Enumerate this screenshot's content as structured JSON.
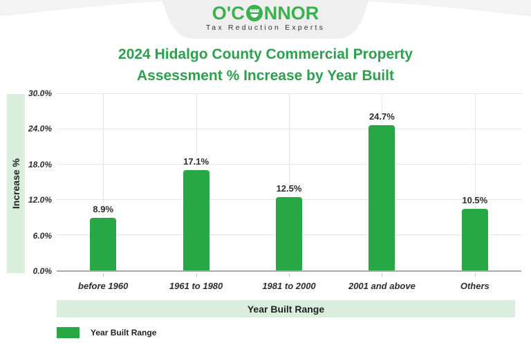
{
  "header": {
    "logo_pre": "O'C",
    "logo_post": "NNOR",
    "logo_full": "O'CONNOR",
    "logo_icon": "oconnor-ruler-circle-icon",
    "tagline": "Tax Reduction Experts"
  },
  "title": {
    "line1": "2024 Hidalgo County Commercial Property",
    "line2": "Assessment % Increase by Year Built"
  },
  "chart_data": {
    "type": "bar",
    "title": "2024 Hidalgo County Commercial Property Assessment % Increase by Year Built",
    "categories": [
      "before 1960",
      "1961 to 1980",
      "1981 to 2000",
      "2001 and above",
      "Others"
    ],
    "values": [
      8.9,
      17.1,
      12.5,
      24.7,
      10.5
    ],
    "value_labels": [
      "8.9%",
      "17.1%",
      "12.5%",
      "24.7%",
      "10.5%"
    ],
    "xlabel": "Year Built Range",
    "ylabel": "Increase %",
    "ylim": [
      0,
      30
    ],
    "ytick_labels": [
      "0.0%",
      "6.0%",
      "12.0%",
      "18.0%",
      "24.0%",
      "30.0%"
    ],
    "grid": true,
    "legend": {
      "position": "bottom-left",
      "label": "Year Built Range"
    }
  },
  "colors": {
    "bar_green": "#28a745",
    "logo_green": "#3bb14d",
    "title_green": "#2aa24c",
    "mint_band": "#d9eedd",
    "badge_gray": "#efefef",
    "text_dark": "#2d2d2d"
  }
}
